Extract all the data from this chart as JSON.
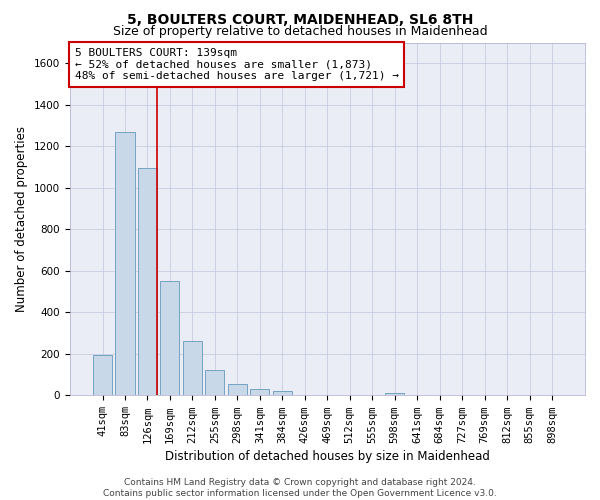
{
  "title": "5, BOULTERS COURT, MAIDENHEAD, SL6 8TH",
  "subtitle": "Size of property relative to detached houses in Maidenhead",
  "xlabel": "Distribution of detached houses by size in Maidenhead",
  "ylabel": "Number of detached properties",
  "categories": [
    "41sqm",
    "83sqm",
    "126sqm",
    "169sqm",
    "212sqm",
    "255sqm",
    "298sqm",
    "341sqm",
    "384sqm",
    "426sqm",
    "469sqm",
    "512sqm",
    "555sqm",
    "598sqm",
    "641sqm",
    "684sqm",
    "727sqm",
    "769sqm",
    "812sqm",
    "855sqm",
    "898sqm"
  ],
  "values": [
    195,
    1270,
    1095,
    550,
    260,
    120,
    55,
    30,
    20,
    0,
    0,
    0,
    0,
    10,
    0,
    0,
    0,
    0,
    0,
    0,
    0
  ],
  "bar_color": "#c8d8e8",
  "bar_edge_color": "#6699bb",
  "vline_index": 2,
  "vline_color": "#cc0000",
  "annotation_text": "5 BOULTERS COURT: 139sqm\n← 52% of detached houses are smaller (1,873)\n48% of semi-detached houses are larger (1,721) →",
  "annotation_box_facecolor": "#ffffff",
  "annotation_box_edgecolor": "#cc0000",
  "ylim_max": 1700,
  "yticks": [
    0,
    200,
    400,
    600,
    800,
    1000,
    1200,
    1400,
    1600
  ],
  "grid_color": "#c8cce0",
  "bg_color": "#eaedf5",
  "footer": "Contains HM Land Registry data © Crown copyright and database right 2024.\nContains public sector information licensed under the Open Government Licence v3.0.",
  "title_fontsize": 10,
  "subtitle_fontsize": 9,
  "xlabel_fontsize": 8.5,
  "ylabel_fontsize": 8.5,
  "tick_fontsize": 7.5,
  "annotation_fontsize": 8,
  "footer_fontsize": 6.5
}
